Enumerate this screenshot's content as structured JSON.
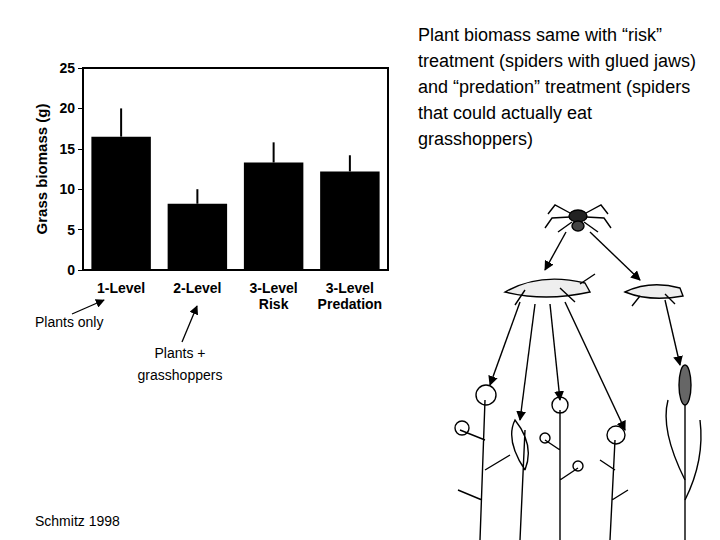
{
  "chart_data": {
    "type": "bar",
    "categories": [
      "1-Level",
      "2-Level",
      "3-Level\nRisk",
      "3-Level\nPredation"
    ],
    "values": [
      16.5,
      8.2,
      13.3,
      12.2
    ],
    "errors": [
      3.5,
      1.8,
      2.5,
      2.0
    ],
    "color": "#000000",
    "y_label": "Grass biomass (g)",
    "ylim": [
      0,
      25
    ],
    "yticks": [
      0,
      5,
      10,
      15,
      20,
      25
    ],
    "grid": false,
    "annotations": [
      "Plant biomass same with “risk” treatment (spiders with glued jaws) and “predation” treatment (spiders that could actually eat grasshoppers)",
      "Plants only",
      "Plants + grasshoppers",
      "Schmitz 1998"
    ]
  }
}
